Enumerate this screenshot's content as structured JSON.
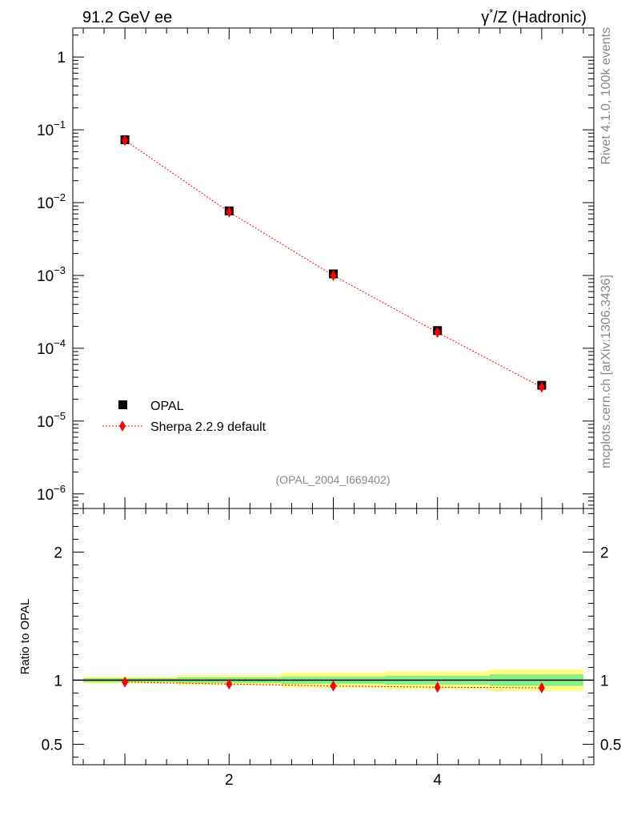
{
  "header": {
    "left_label": "91.2 GeV ee",
    "right_label_base": "γ",
    "right_label_sup": "*",
    "right_label_rest": "/Z (Hadronic)"
  },
  "side": {
    "rivet_label": "Rivet 4.1.0,  100k events",
    "mcplots_label": "mcplots.cern.ch [arXiv:1306.3436]"
  },
  "analysis_label": "(OPAL_2004_I669402)",
  "chart_data": [
    {
      "type": "scatter",
      "yscale": "log",
      "xlim": [
        0.5,
        5.5
      ],
      "ylim": [
        6.3e-07,
        2.5
      ],
      "y_ticks": [
        {
          "value": 1,
          "label": "1",
          "exp": ""
        },
        {
          "value": 0.1,
          "label": "10",
          "exp": "−1"
        },
        {
          "value": 0.01,
          "label": "10",
          "exp": "−2"
        },
        {
          "value": 0.001,
          "label": "10",
          "exp": "−3"
        },
        {
          "value": 0.0001,
          "label": "10",
          "exp": "−4"
        },
        {
          "value": 1e-05,
          "label": "10",
          "exp": "−5"
        },
        {
          "value": 1e-06,
          "label": "10",
          "exp": "−6"
        }
      ],
      "legend_position": "bottom-left",
      "series": [
        {
          "name": "OPAL",
          "color": "#000000",
          "marker": "square",
          "x": [
            1,
            2,
            3,
            4,
            5
          ],
          "y": [
            0.073,
            0.0077,
            0.00105,
            0.000175,
            3.1e-05
          ]
        },
        {
          "name": "Sherpa 2.2.9 default",
          "color": "#ff0000",
          "marker": "diamond",
          "line": "dotted",
          "x": [
            1,
            2,
            3,
            4,
            5
          ],
          "y": [
            0.0718,
            0.00745,
            0.001,
            0.000165,
            2.92e-05
          ]
        }
      ]
    },
    {
      "type": "scatter",
      "ylabel": "Ratio to OPAL",
      "xlim": [
        0.5,
        5.5
      ],
      "ylim": [
        0.34,
        2.34
      ],
      "x_ticks": [
        {
          "value": 2,
          "label": "2"
        },
        {
          "value": 4,
          "label": "4"
        }
      ],
      "y_ticks": [
        {
          "value": 2,
          "label": "2"
        },
        {
          "value": 1,
          "label": "1"
        },
        {
          "value": 0.5,
          "label": "0.5"
        }
      ],
      "bands": {
        "x_edges": [
          0.6,
          1.5,
          2.5,
          3.5,
          4.5,
          5.4
        ],
        "yellow": [
          0.027,
          0.04,
          0.06,
          0.07,
          0.085
        ],
        "green": [
          0.015,
          0.022,
          0.03,
          0.035,
          0.045
        ]
      },
      "series": [
        {
          "name": "Sherpa 2.2.9 default",
          "color": "#ff0000",
          "marker": "diamond",
          "line": "dotted",
          "x": [
            1,
            2,
            3,
            4,
            5
          ],
          "y": [
            0.985,
            0.97,
            0.955,
            0.945,
            0.94
          ]
        }
      ]
    }
  ]
}
